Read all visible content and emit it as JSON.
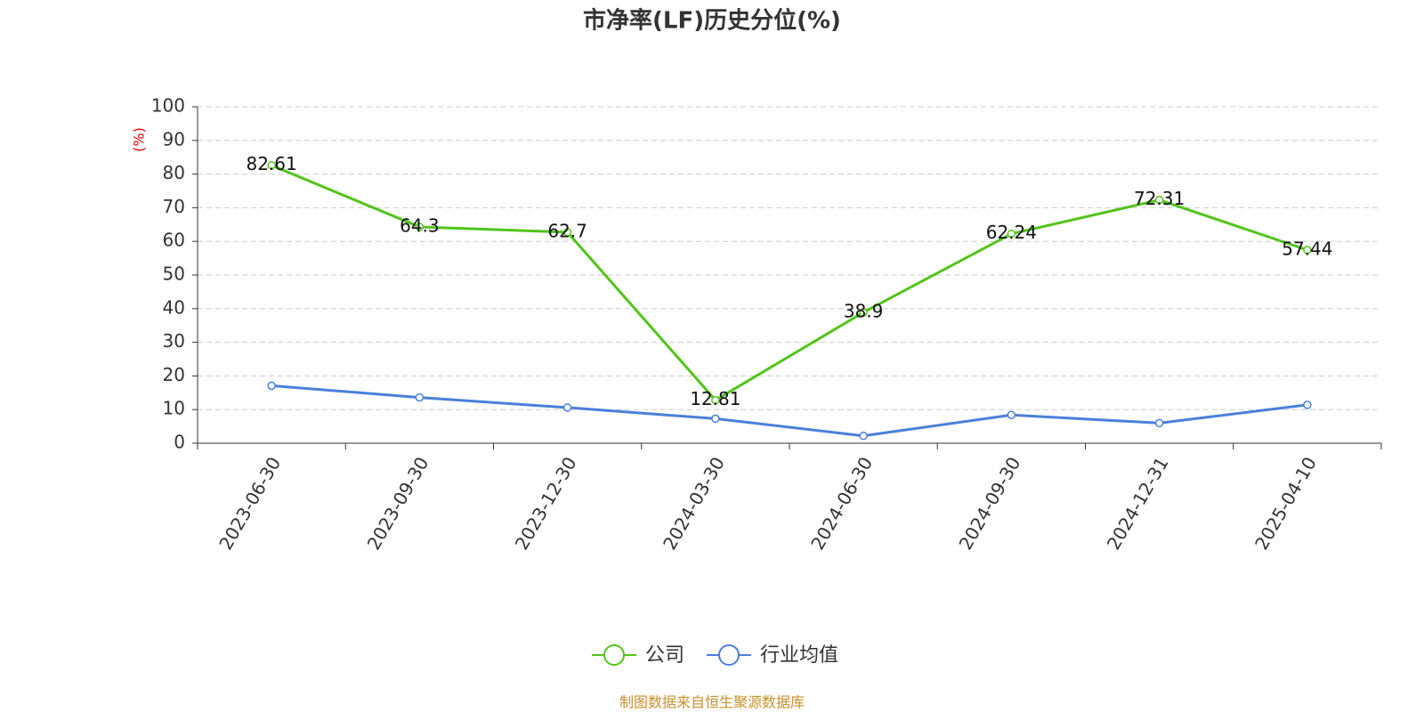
{
  "chart_data": {
    "type": "line",
    "title": "市净率(LF)历史分位(%)",
    "y_label": "(%)",
    "categories": [
      "2023-06-30",
      "2023-09-30",
      "2023-12-30",
      "2024-03-30",
      "2024-06-30",
      "2024-09-30",
      "2024-12-31",
      "2025-04-10"
    ],
    "series": [
      {
        "name": "公司",
        "color": "#52c41a",
        "values": [
          82.61,
          64.3,
          62.7,
          12.81,
          38.9,
          62.24,
          72.31,
          57.44
        ]
      },
      {
        "name": "行业均值",
        "color": "#4b7fdb",
        "values": [
          17.1,
          13.6,
          10.6,
          7.3,
          2.2,
          8.4,
          6.0,
          11.4
        ]
      }
    ],
    "ylim": [
      0,
      100
    ],
    "yticks": [
      0,
      10,
      20,
      30,
      40,
      50,
      60,
      70,
      80,
      90,
      100
    ],
    "grid": true,
    "source": "制图数据来自恒生聚源数据库"
  }
}
